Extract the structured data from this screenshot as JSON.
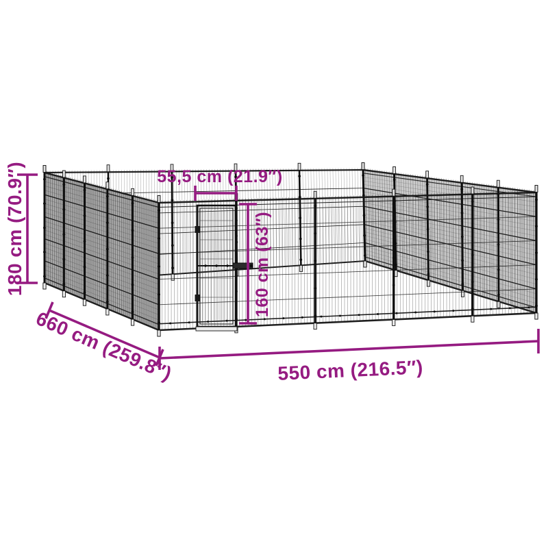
{
  "diagram": {
    "kind": "product-dimension-diagram",
    "subject": "open-top steel wire-mesh outdoor dog kennel with a door, drawn in perspective",
    "background_color": "#ffffff",
    "accent_color": "#951B81",
    "structure_color": "#141414",
    "left_wall_fill": "#a6a6a6",
    "right_wall_fill": "#cbcbcb",
    "dimensions": {
      "height": {
        "label": "180 cm (70.9″)",
        "cm": 180,
        "inches": 70.9,
        "applies_to": "enclosure height (left edge)"
      },
      "depth": {
        "label": "660 cm (259.8″)",
        "cm": 660,
        "inches": 259.8,
        "applies_to": "enclosure depth (left side, diagonal)"
      },
      "width": {
        "label": "550 cm (216.5″)",
        "cm": 550,
        "inches": 216.5,
        "applies_to": "enclosure width (front side)"
      },
      "door_width": {
        "label": "55,5 cm (21.9″)",
        "cm": 55.5,
        "inches": 21.9,
        "applies_to": "door width"
      },
      "door_height": {
        "label": "160 cm (63″)",
        "cm": 160,
        "inches": 63,
        "applies_to": "door height"
      }
    }
  }
}
